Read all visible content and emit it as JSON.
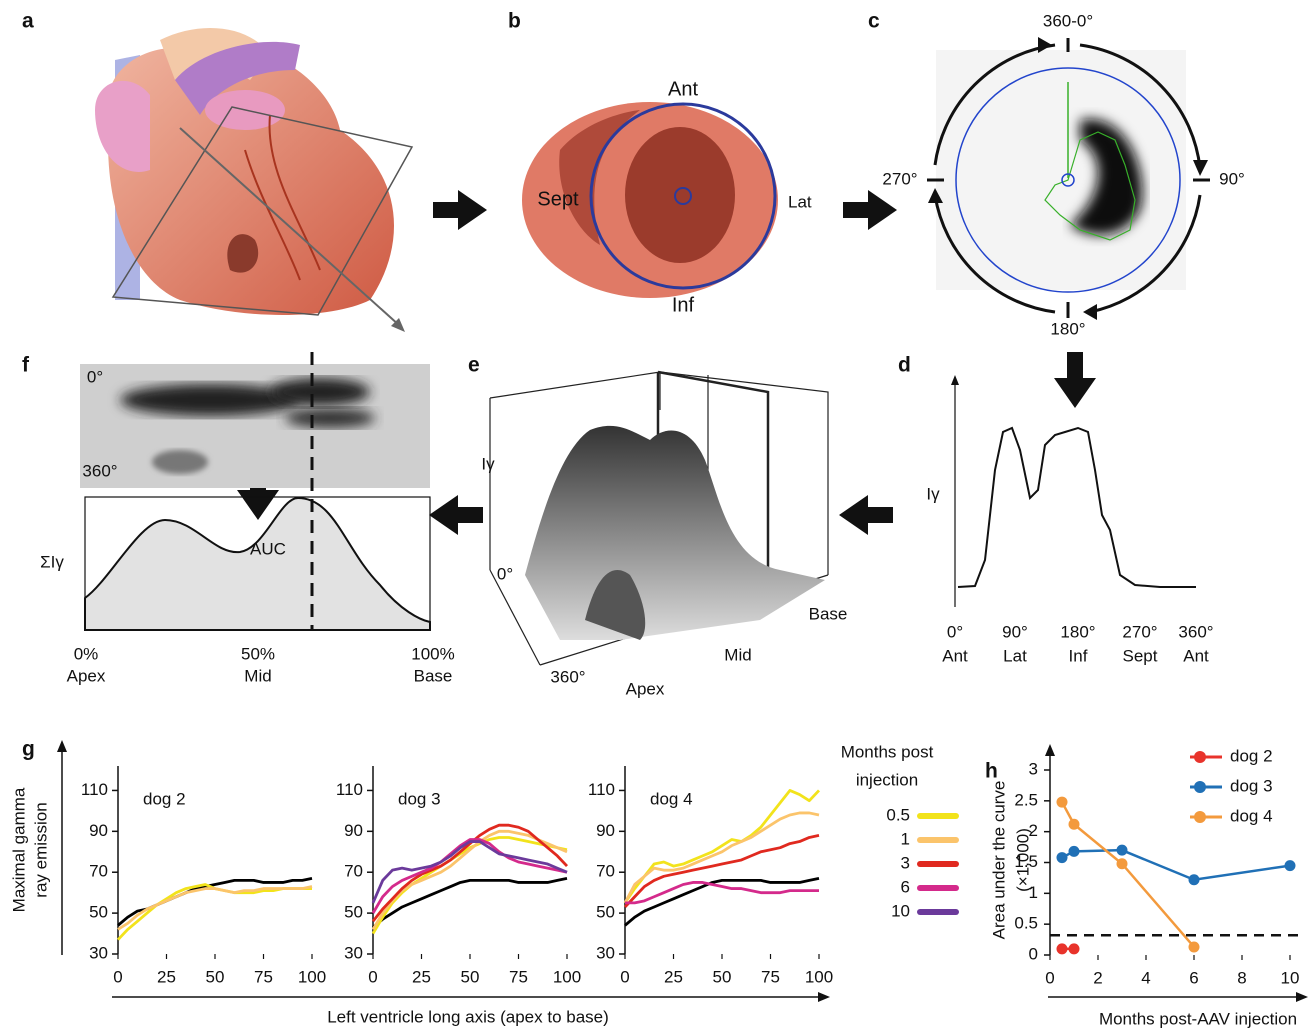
{
  "panel_labels": [
    "a",
    "b",
    "c",
    "d",
    "e",
    "f",
    "g",
    "h"
  ],
  "panel_b": {
    "anterior": "Ant",
    "septal": "Sept",
    "lateral": "Lat",
    "inferior": "Inf"
  },
  "panel_c": {
    "top": "360-0°",
    "left": "270°",
    "right": "90°",
    "bottom": "180°"
  },
  "panel_d": {
    "y_label": "Iγ",
    "x_labels": [
      [
        "0°",
        "Ant"
      ],
      [
        "90°",
        "Lat"
      ],
      [
        "180°",
        "Inf"
      ],
      [
        "270°",
        "Sept"
      ],
      [
        "360°",
        "Ant"
      ]
    ]
  },
  "panel_e": {
    "y_label": "Iγ",
    "angle_start": "0°",
    "angle_end": "360°",
    "apex": "Apex",
    "mid": "Mid",
    "base": "Base"
  },
  "panel_f": {
    "angle_start": "0°",
    "angle_end": "360°",
    "y_label": "ΣIγ",
    "area": "AUC",
    "x_labels": [
      [
        "0%",
        "Apex"
      ],
      [
        "50%",
        "Mid"
      ],
      [
        "100%",
        "Base"
      ]
    ]
  },
  "chart_data": [
    {
      "type": "line",
      "y_label": [
        "Maximal gamma",
        "ray emission"
      ],
      "x_label": "Left ventricle long axis (apex to base)",
      "legend_title": [
        "Months post",
        "injection"
      ],
      "legend": [
        {
          "name": "0.5",
          "color": "#f2e31b"
        },
        {
          "name": "1",
          "color": "#fbc46b"
        },
        {
          "name": "3",
          "color": "#e0291f"
        },
        {
          "name": "6",
          "color": "#d42a8b"
        },
        {
          "name": "10",
          "color": "#6b3a9b"
        }
      ],
      "x": [
        0,
        5,
        10,
        15,
        20,
        25,
        30,
        35,
        40,
        45,
        50,
        55,
        60,
        65,
        70,
        75,
        80,
        85,
        90,
        95,
        100
      ],
      "xlim": [
        0,
        100
      ],
      "xticks": [
        0,
        25,
        50,
        75,
        100
      ],
      "ylim": [
        30,
        120
      ],
      "yticks": [
        30,
        50,
        70,
        90,
        110
      ],
      "subplots": [
        {
          "title": "dog 2",
          "series": [
            {
              "color": "#000000",
              "values": [
                44,
                48,
                51,
                52,
                54,
                56,
                58,
                60,
                62,
                63,
                64,
                65,
                66,
                66,
                66,
                65,
                65,
                65,
                66,
                66,
                67
              ]
            },
            {
              "color": "#f2e31b",
              "values": [
                37,
                42,
                46,
                50,
                54,
                57,
                60,
                62,
                63,
                64,
                62,
                61,
                60,
                60,
                60,
                61,
                61,
                62,
                62,
                62,
                62
              ]
            },
            {
              "color": "#fbc46b",
              "values": [
                42,
                45,
                49,
                52,
                54,
                56,
                58,
                60,
                61,
                62,
                62,
                61,
                60,
                61,
                61,
                62,
                62,
                62,
                62,
                62,
                63
              ]
            }
          ]
        },
        {
          "title": "dog 3",
          "series": [
            {
              "color": "#000000",
              "values": [
                43,
                47,
                50,
                53,
                55,
                57,
                59,
                61,
                63,
                65,
                66,
                66,
                66,
                66,
                66,
                65,
                65,
                65,
                65,
                66,
                67
              ]
            },
            {
              "color": "#f2e31b",
              "values": [
                40,
                48,
                55,
                60,
                64,
                67,
                70,
                73,
                76,
                79,
                82,
                84,
                86,
                87,
                87,
                86,
                85,
                84,
                83,
                82,
                81
              ]
            },
            {
              "color": "#fbc46b",
              "values": [
                42,
                50,
                56,
                61,
                64,
                66,
                68,
                70,
                73,
                77,
                81,
                85,
                88,
                90,
                90,
                89,
                88,
                86,
                84,
                82,
                80
              ]
            },
            {
              "color": "#e0291f",
              "values": [
                46,
                52,
                57,
                62,
                66,
                69,
                71,
                73,
                76,
                80,
                84,
                88,
                91,
                93,
                93,
                92,
                90,
                86,
                82,
                78,
                73
              ]
            },
            {
              "color": "#d42a8b",
              "values": [
                50,
                58,
                63,
                66,
                68,
                70,
                72,
                75,
                79,
                83,
                86,
                86,
                84,
                80,
                77,
                75,
                74,
                73,
                72,
                71,
                70
              ]
            },
            {
              "color": "#6b3a9b",
              "values": [
                55,
                66,
                71,
                72,
                71,
                72,
                73,
                75,
                78,
                82,
                85,
                85,
                82,
                79,
                78,
                77,
                76,
                75,
                74,
                72,
                70
              ]
            }
          ]
        },
        {
          "title": "dog 4",
          "series": [
            {
              "color": "#000000",
              "values": [
                44,
                48,
                51,
                53,
                55,
                57,
                59,
                61,
                63,
                65,
                66,
                66,
                66,
                66,
                66,
                65,
                65,
                65,
                65,
                66,
                67
              ]
            },
            {
              "color": "#f2e31b",
              "values": [
                55,
                62,
                68,
                74,
                75,
                73,
                74,
                76,
                78,
                80,
                83,
                86,
                85,
                88,
                92,
                98,
                104,
                110,
                108,
                105,
                110
              ]
            },
            {
              "color": "#fbc46b",
              "values": [
                55,
                64,
                68,
                72,
                71,
                71,
                72,
                74,
                76,
                78,
                80,
                83,
                85,
                87,
                90,
                93,
                96,
                98,
                99,
                99,
                98
              ]
            },
            {
              "color": "#e0291f",
              "values": [
                53,
                58,
                63,
                66,
                68,
                69,
                70,
                71,
                72,
                73,
                74,
                75,
                76,
                78,
                80,
                81,
                82,
                84,
                85,
                87,
                88
              ]
            },
            {
              "color": "#d42a8b",
              "values": [
                55,
                55,
                56,
                58,
                60,
                62,
                64,
                65,
                65,
                64,
                63,
                62,
                62,
                61,
                60,
                60,
                60,
                61,
                61,
                61,
                61
              ]
            }
          ]
        }
      ]
    },
    {
      "type": "scatter-line",
      "y_label": [
        "Area under the curve",
        "(×1,000)"
      ],
      "x_label": "Months post-AAV injection",
      "xlim": [
        0,
        10.5
      ],
      "xticks": [
        0,
        2,
        4,
        6,
        8,
        10
      ],
      "ylim": [
        0,
        3
      ],
      "yticks": [
        0,
        0.5,
        1,
        1.5,
        2,
        2.5,
        3
      ],
      "reference_line": 0.32,
      "series": [
        {
          "name": "dog 2",
          "color": "#e8332b",
          "x": [
            0.5,
            1
          ],
          "values": [
            0.1,
            0.1
          ]
        },
        {
          "name": "dog 3",
          "color": "#2070b6",
          "x": [
            0.5,
            1,
            3,
            6,
            10
          ],
          "values": [
            1.58,
            1.68,
            1.7,
            1.22,
            1.45
          ]
        },
        {
          "name": "dog 4",
          "color": "#f39a3d",
          "x": [
            0.5,
            1,
            3,
            6
          ],
          "values": [
            2.48,
            2.12,
            1.48,
            0.13
          ]
        }
      ]
    }
  ]
}
